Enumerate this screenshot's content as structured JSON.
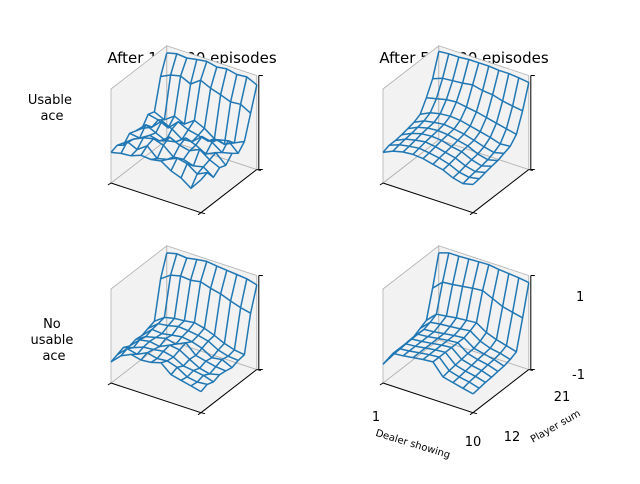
{
  "columns": [
    "After 100000 episodes",
    "After 500000 episodes"
  ],
  "rows": [
    [
      "Usable",
      "ace"
    ],
    [
      "No",
      "usable",
      "ace"
    ]
  ],
  "axes": {
    "x_label": "Dealer showing",
    "y_label": "Player sum",
    "x_ticks": [
      "1",
      "10"
    ],
    "y_ticks": [
      "12",
      "21"
    ],
    "z_ticks": [
      "-1",
      "1"
    ]
  },
  "colors": {
    "line": "#1f77b4",
    "pane": "#f2f2f2",
    "pane_edge": "#b0b0b0"
  },
  "chart_data": [
    {
      "type": "wireframe",
      "title": "After 100000 episodes",
      "row_label": "Usable ace",
      "x": [
        1,
        2,
        3,
        4,
        5,
        6,
        7,
        8,
        9,
        10
      ],
      "y": [
        12,
        13,
        14,
        15,
        16,
        17,
        18,
        19,
        20,
        21
      ],
      "zlim": [
        -1,
        1
      ],
      "values": [
        [
          -0.35,
          -0.3,
          -0.28,
          -0.2,
          -0.22,
          -0.18,
          -0.32,
          -0.4,
          -0.55,
          -0.3
        ],
        [
          -0.3,
          -0.15,
          -0.25,
          -0.1,
          -0.3,
          -0.25,
          -0.15,
          -0.2,
          -0.35,
          -0.25
        ],
        [
          -0.4,
          -0.2,
          -0.1,
          -0.05,
          -0.12,
          -0.3,
          -0.28,
          -0.35,
          -0.3,
          -0.45
        ],
        [
          -0.25,
          -0.28,
          -0.15,
          -0.2,
          -0.05,
          -0.15,
          -0.2,
          -0.1,
          -0.25,
          -0.35
        ],
        [
          -0.3,
          -0.1,
          -0.2,
          -0.3,
          -0.25,
          -0.1,
          -0.18,
          -0.3,
          -0.2,
          -0.4
        ],
        [
          -0.35,
          -0.25,
          -0.05,
          -0.15,
          -0.3,
          -0.28,
          -0.1,
          -0.15,
          -0.3,
          -0.25
        ],
        [
          -0.15,
          -0.2,
          -0.3,
          -0.1,
          -0.2,
          -0.25,
          -0.3,
          -0.2,
          -0.15,
          -0.35
        ],
        [
          -0.2,
          -0.3,
          -0.15,
          -0.25,
          -0.1,
          -0.2,
          -0.35,
          -0.4,
          -0.3,
          -0.2
        ],
        [
          0.45,
          0.55,
          0.6,
          0.5,
          0.65,
          0.55,
          0.48,
          0.4,
          0.42,
          0.3
        ],
        [
          0.85,
          0.9,
          0.88,
          0.92,
          0.95,
          0.9,
          0.93,
          0.88,
          0.9,
          0.8
        ]
      ]
    },
    {
      "type": "wireframe",
      "title": "After 500000 episodes",
      "row_label": "Usable ace",
      "x": [
        1,
        2,
        3,
        4,
        5,
        6,
        7,
        8,
        9,
        10
      ],
      "y": [
        12,
        13,
        14,
        15,
        16,
        17,
        18,
        19,
        20,
        21
      ],
      "zlim": [
        -1,
        1
      ],
      "values": [
        [
          -0.35,
          -0.25,
          -0.2,
          -0.18,
          -0.2,
          -0.25,
          -0.3,
          -0.4,
          -0.45,
          -0.4
        ],
        [
          -0.3,
          -0.22,
          -0.18,
          -0.15,
          -0.18,
          -0.22,
          -0.28,
          -0.38,
          -0.42,
          -0.38
        ],
        [
          -0.3,
          -0.2,
          -0.15,
          -0.12,
          -0.15,
          -0.2,
          -0.25,
          -0.35,
          -0.4,
          -0.35
        ],
        [
          -0.28,
          -0.18,
          -0.12,
          -0.1,
          -0.12,
          -0.18,
          -0.22,
          -0.32,
          -0.38,
          -0.32
        ],
        [
          -0.25,
          -0.15,
          -0.1,
          -0.08,
          -0.1,
          -0.15,
          -0.2,
          -0.3,
          -0.35,
          -0.3
        ],
        [
          -0.22,
          -0.12,
          -0.08,
          -0.05,
          -0.08,
          -0.12,
          -0.18,
          -0.25,
          -0.3,
          -0.25
        ],
        [
          -0.15,
          -0.05,
          0.0,
          0.02,
          0.0,
          -0.05,
          -0.1,
          -0.15,
          -0.22,
          -0.2
        ],
        [
          0.1,
          0.15,
          0.2,
          0.22,
          0.18,
          0.15,
          0.1,
          0.05,
          0.0,
          -0.05
        ],
        [
          0.4,
          0.48,
          0.5,
          0.52,
          0.55,
          0.5,
          0.48,
          0.42,
          0.38,
          0.35
        ],
        [
          0.88,
          0.9,
          0.9,
          0.92,
          0.92,
          0.92,
          0.9,
          0.9,
          0.88,
          0.85
        ]
      ]
    },
    {
      "type": "wireframe",
      "title": "",
      "row_label": "No usable ace",
      "x": [
        1,
        2,
        3,
        4,
        5,
        6,
        7,
        8,
        9,
        10
      ],
      "y": [
        12,
        13,
        14,
        15,
        16,
        17,
        18,
        19,
        20,
        21
      ],
      "zlim": [
        -1,
        1
      ],
      "values": [
        [
          -0.55,
          -0.35,
          -0.25,
          -0.3,
          -0.28,
          -0.22,
          -0.4,
          -0.45,
          -0.5,
          -0.55
        ],
        [
          -0.5,
          -0.3,
          -0.35,
          -0.25,
          -0.3,
          -0.28,
          -0.35,
          -0.48,
          -0.52,
          -0.5
        ],
        [
          -0.45,
          -0.38,
          -0.3,
          -0.28,
          -0.25,
          -0.3,
          -0.42,
          -0.45,
          -0.48,
          -0.55
        ],
        [
          -0.52,
          -0.32,
          -0.28,
          -0.32,
          -0.22,
          -0.25,
          -0.38,
          -0.5,
          -0.55,
          -0.5
        ],
        [
          -0.48,
          -0.35,
          -0.3,
          -0.25,
          -0.3,
          -0.2,
          -0.4,
          -0.45,
          -0.5,
          -0.52
        ],
        [
          -0.5,
          -0.3,
          -0.32,
          -0.28,
          -0.25,
          -0.28,
          -0.35,
          -0.48,
          -0.45,
          -0.55
        ],
        [
          -0.45,
          -0.28,
          -0.25,
          -0.2,
          -0.22,
          -0.25,
          -0.3,
          -0.42,
          -0.48,
          -0.5
        ],
        [
          -0.4,
          -0.25,
          -0.2,
          -0.18,
          -0.15,
          -0.2,
          -0.28,
          -0.38,
          -0.45,
          -0.48
        ],
        [
          0.4,
          0.55,
          0.6,
          0.58,
          0.62,
          0.55,
          0.5,
          0.42,
          0.35,
          0.3
        ],
        [
          0.85,
          0.9,
          0.88,
          0.92,
          0.95,
          0.92,
          0.9,
          0.88,
          0.86,
          0.8
        ]
      ]
    },
    {
      "type": "wireframe",
      "title": "",
      "row_label": "No usable ace",
      "x": [
        1,
        2,
        3,
        4,
        5,
        6,
        7,
        8,
        9,
        10
      ],
      "y": [
        12,
        13,
        14,
        15,
        16,
        17,
        18,
        19,
        20,
        21
      ],
      "zlim": [
        -1,
        1
      ],
      "values": [
        [
          -0.6,
          -0.3,
          -0.28,
          -0.25,
          -0.22,
          -0.2,
          -0.45,
          -0.5,
          -0.55,
          -0.6
        ],
        [
          -0.58,
          -0.3,
          -0.28,
          -0.25,
          -0.22,
          -0.2,
          -0.42,
          -0.48,
          -0.52,
          -0.58
        ],
        [
          -0.56,
          -0.3,
          -0.28,
          -0.25,
          -0.22,
          -0.2,
          -0.4,
          -0.46,
          -0.5,
          -0.56
        ],
        [
          -0.55,
          -0.3,
          -0.28,
          -0.25,
          -0.22,
          -0.2,
          -0.38,
          -0.44,
          -0.48,
          -0.55
        ],
        [
          -0.53,
          -0.3,
          -0.28,
          -0.25,
          -0.22,
          -0.2,
          -0.36,
          -0.42,
          -0.46,
          -0.53
        ],
        [
          -0.52,
          -0.3,
          -0.28,
          -0.25,
          -0.22,
          -0.2,
          -0.35,
          -0.4,
          -0.45,
          -0.52
        ],
        [
          -0.45,
          -0.25,
          -0.22,
          -0.2,
          -0.18,
          -0.15,
          -0.3,
          -0.38,
          -0.42,
          -0.48
        ],
        [
          -0.38,
          -0.18,
          -0.15,
          -0.12,
          -0.1,
          -0.08,
          -0.22,
          -0.3,
          -0.36,
          -0.42
        ],
        [
          0.2,
          0.4,
          0.42,
          0.45,
          0.48,
          0.5,
          0.4,
          0.3,
          0.25,
          0.2
        ],
        [
          0.85,
          0.92,
          0.92,
          0.93,
          0.94,
          0.95,
          0.92,
          0.9,
          0.88,
          0.85
        ]
      ]
    }
  ]
}
